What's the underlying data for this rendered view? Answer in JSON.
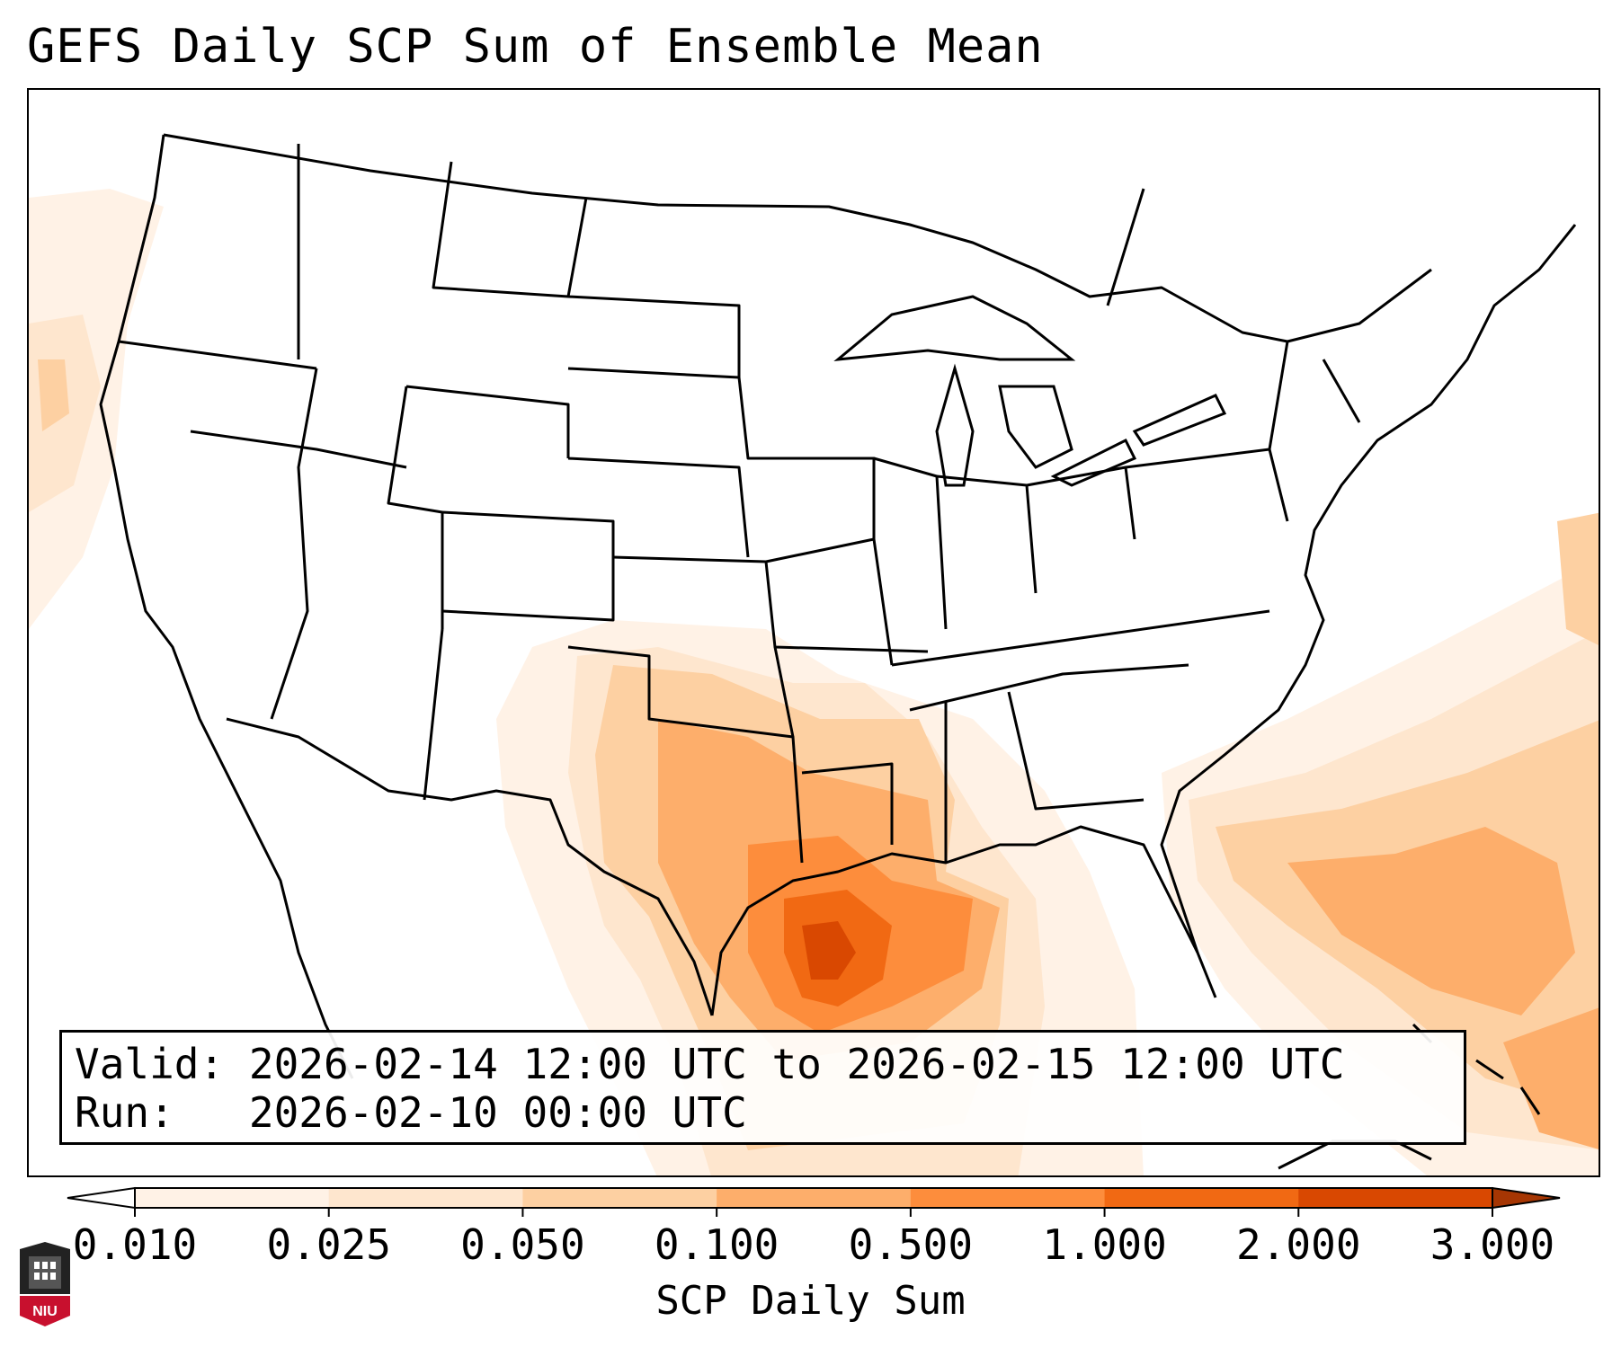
{
  "title": "GEFS Daily SCP Sum of Ensemble Mean",
  "info": {
    "valid_label": "Valid:",
    "valid_value": "2026-02-14 12:00 UTC to 2026-02-15 12:00 UTC",
    "run_label": "Run:",
    "run_value": "2026-02-10 00:00 UTC"
  },
  "colorbar": {
    "label": "SCP Daily Sum",
    "ticks": [
      "0.010",
      "0.025",
      "0.050",
      "0.100",
      "0.500",
      "1.000",
      "2.000",
      "3.000"
    ],
    "colors": [
      "#fff2e6",
      "#fee6ce",
      "#fdd0a2",
      "#fdae6b",
      "#fd8d3c",
      "#f16913",
      "#d94801",
      "#a63603"
    ],
    "extend": "both"
  },
  "logo": {
    "text": "NIU",
    "color": "#c8102e"
  },
  "map": {
    "projection": "Lambert conformal, CONUS",
    "features": [
      "state-boundaries",
      "coastlines",
      "country-borders"
    ]
  }
}
